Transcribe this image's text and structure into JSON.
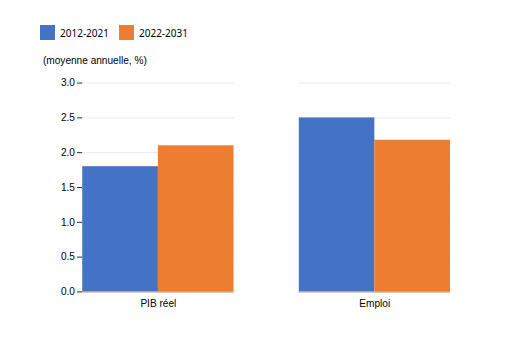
{
  "chart_data": {
    "type": "bar",
    "ylabel": "(moyenne annuelle, %)",
    "categories": [
      "PIB réel",
      "Emploi"
    ],
    "series": [
      {
        "name": "2012-2021",
        "color": "#4472C4",
        "values": [
          1.8,
          2.5
        ]
      },
      {
        "name": "2022-2031",
        "color": "#ED7D31",
        "values": [
          2.1,
          2.18
        ]
      }
    ],
    "ylim": [
      0,
      3
    ],
    "yticks": [
      {
        "value": 0,
        "label": "0.0"
      },
      0.5,
      {
        "value": 1,
        "label": "1.0"
      },
      1.5,
      {
        "value": 2,
        "label": "2.0"
      },
      2.5,
      {
        "value": 3,
        "label": "3.0"
      }
    ],
    "grid": true,
    "legend": "top"
  }
}
